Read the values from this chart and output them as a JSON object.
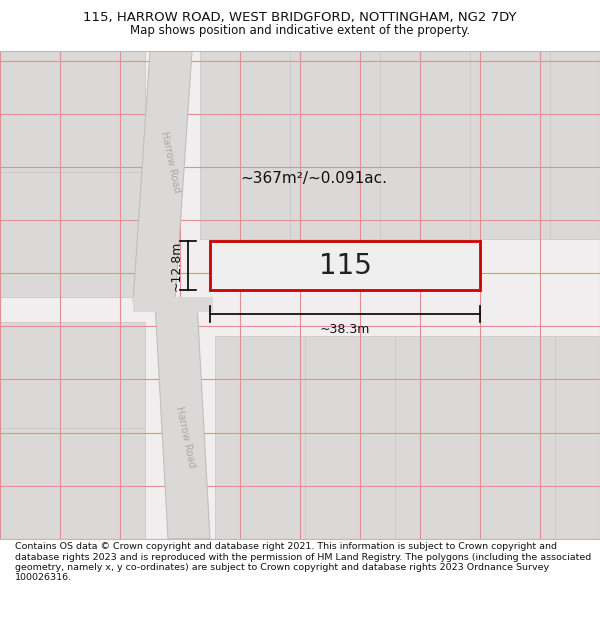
{
  "title_line1": "115, HARROW ROAD, WEST BRIDGFORD, NOTTINGHAM, NG2 7DY",
  "title_line2": "Map shows position and indicative extent of the property.",
  "footer_text": "Contains OS data © Crown copyright and database right 2021. This information is subject to Crown copyright and database rights 2023 and is reproduced with the permission of HM Land Registry. The polygons (including the associated geometry, namely x, y co-ordinates) are subject to Crown copyright and database rights 2023 Ordnance Survey 100026316.",
  "property_color": "#cc0000",
  "property_label": "115",
  "area_label": "~367m²/~0.091ac.",
  "dim_width_label": "~38.3m",
  "dim_height_label": "~12.8m",
  "road_label_1": "Harrow Road",
  "road_label_2": "Harrow Road",
  "bg_light": "#f0eeee",
  "bg_mid": "#e2dfdf",
  "bg_dark": "#d5d2d2",
  "road_bg": "#dbd8d8",
  "grid_color": "#e09090",
  "block_color": "#dbd8d8",
  "block_edge": "#c8c5c5",
  "title_fontsize": 9.5,
  "subtitle_fontsize": 8.5,
  "footer_fontsize": 6.8,
  "prop_label_fontsize": 20,
  "area_label_fontsize": 11,
  "dim_fontsize": 9,
  "road_fontsize": 7
}
